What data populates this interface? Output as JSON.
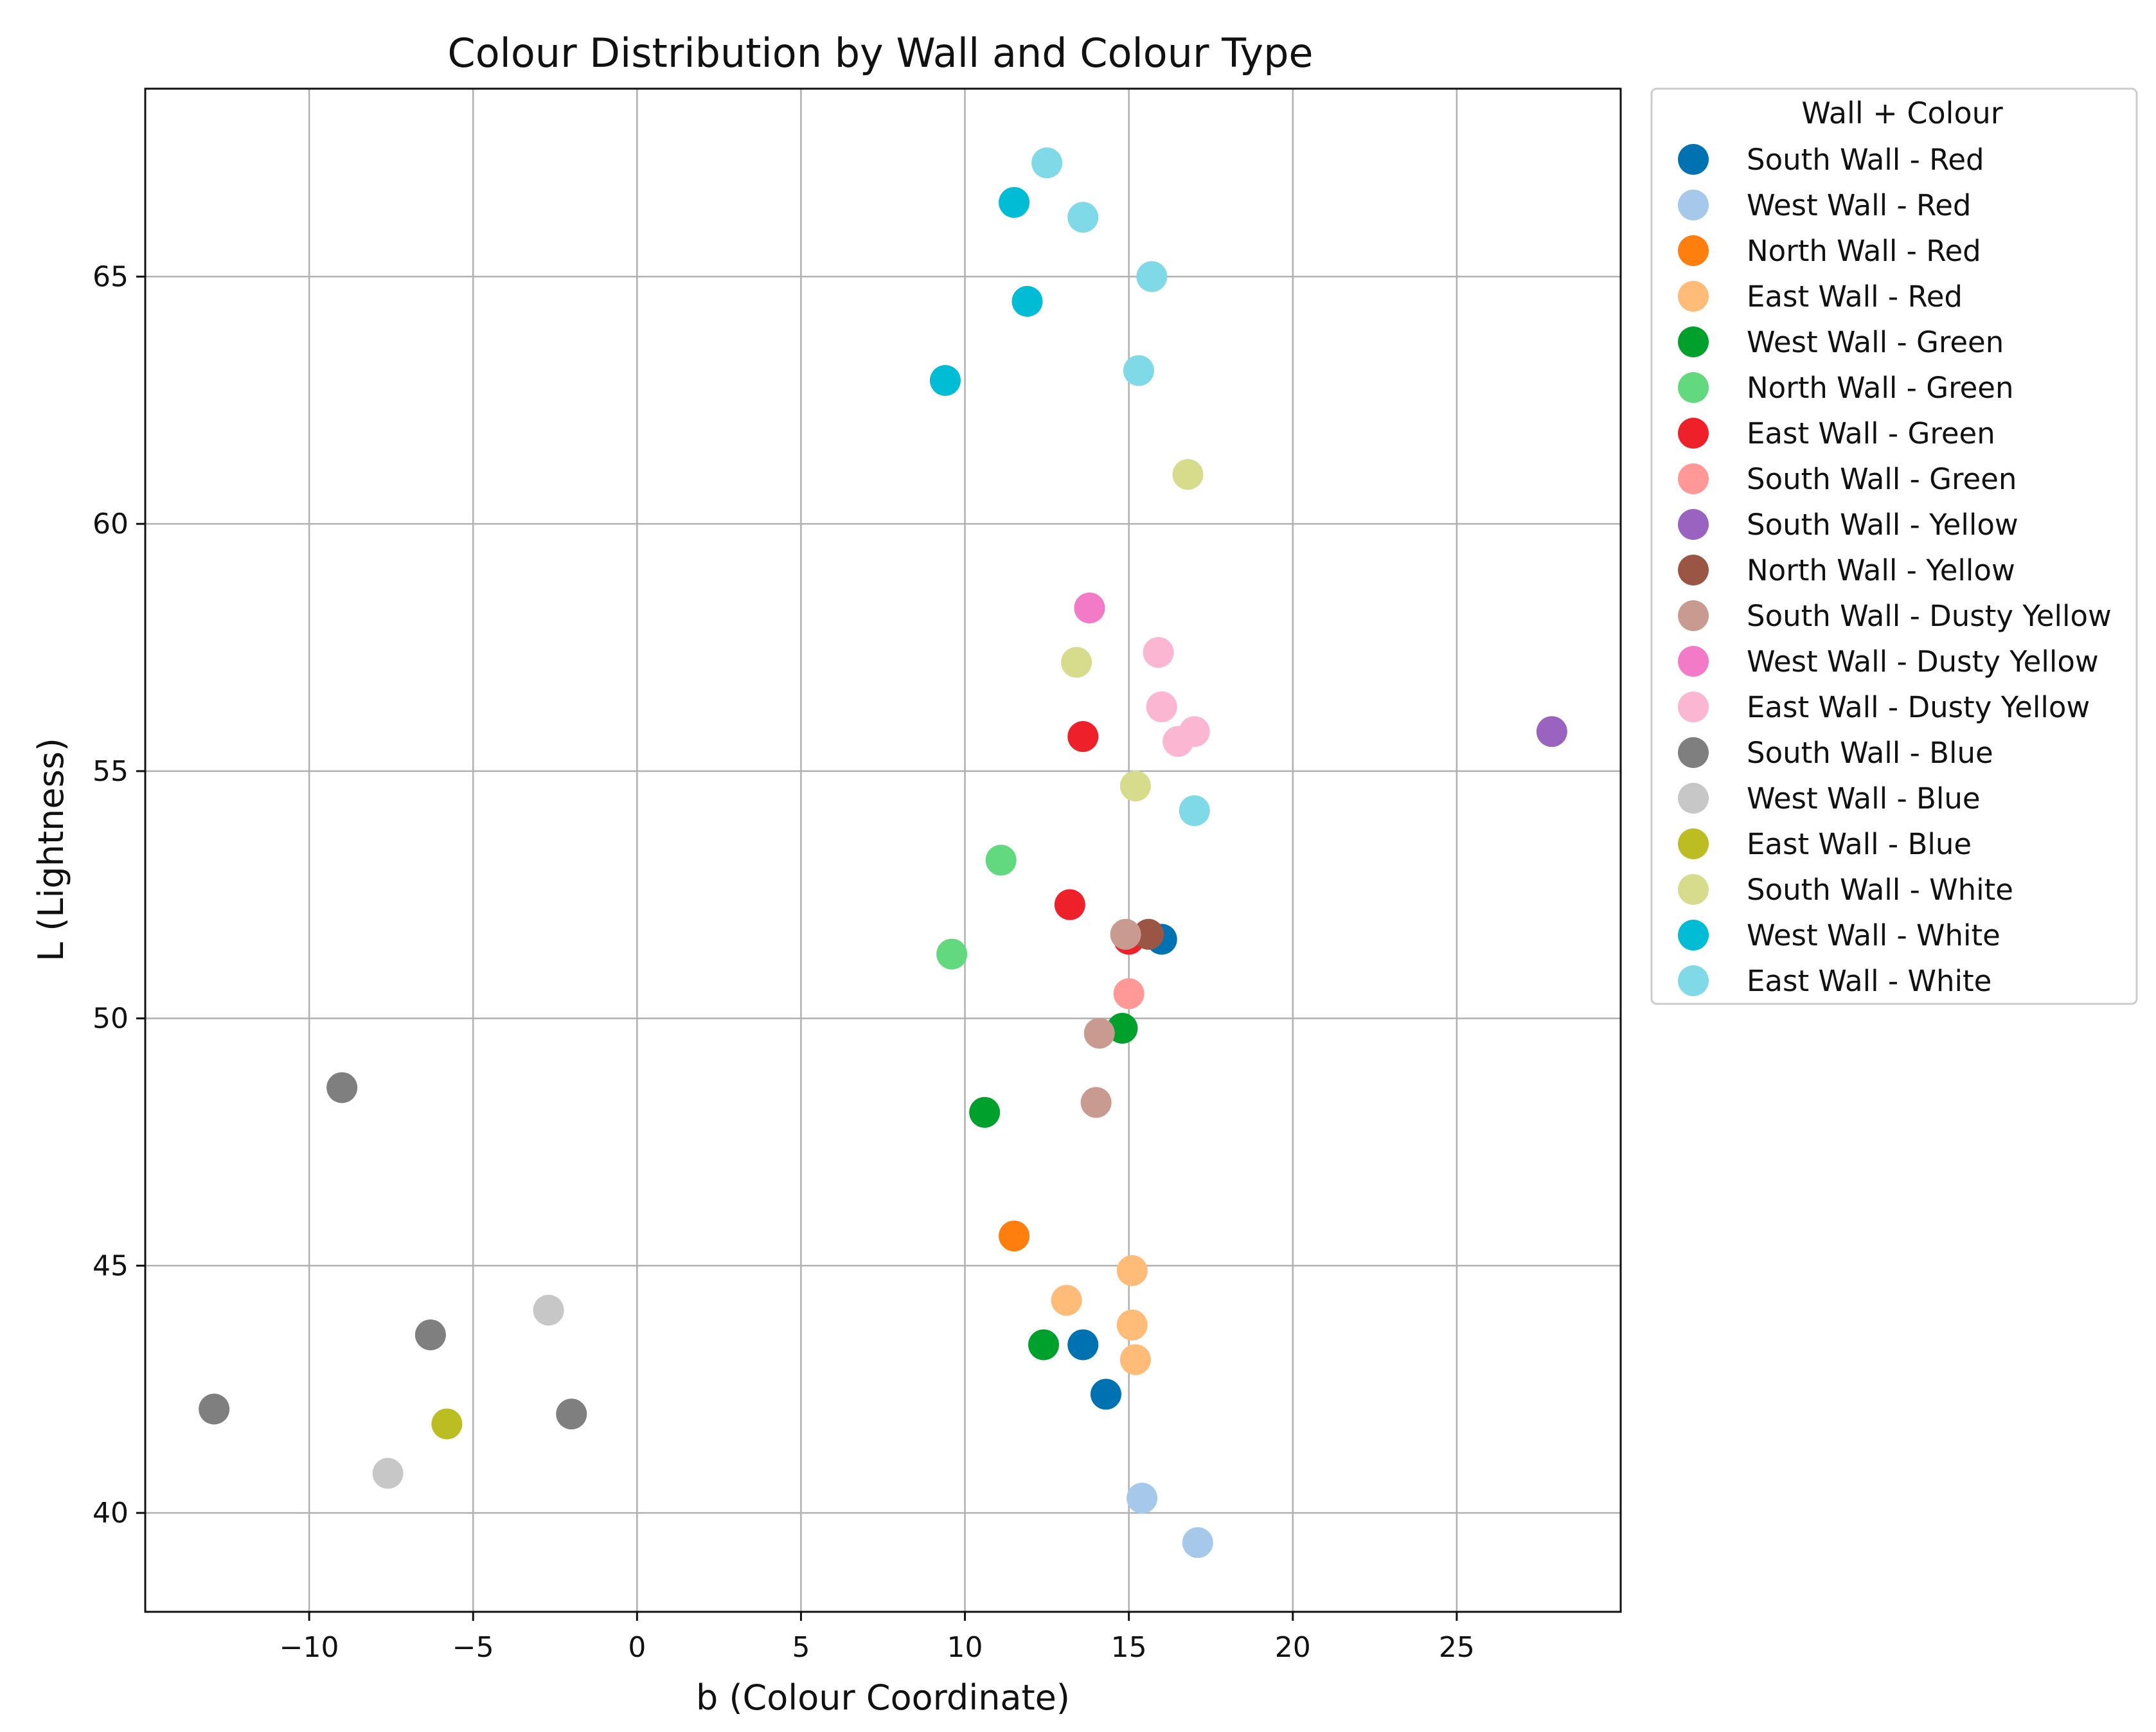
{
  "chart_data": {
    "type": "scatter",
    "title": "Colour Distribution by Wall and Colour Type",
    "xlabel": "b (Colour Coordinate)",
    "ylabel": "L (Lightness)",
    "xlim": [
      -15,
      30
    ],
    "ylim": [
      38,
      68.8
    ],
    "xticks": [
      -10,
      -5,
      0,
      5,
      10,
      15,
      20,
      25
    ],
    "yticks": [
      40,
      45,
      50,
      55,
      60,
      65
    ],
    "grid": true,
    "legend_title": "Wall + Colour",
    "legend_position": "outside-right",
    "series": [
      {
        "name": "South Wall - Red",
        "color": "#0072b2",
        "points": [
          [
            16.0,
            51.6
          ],
          [
            13.6,
            43.4
          ],
          [
            14.3,
            42.4
          ]
        ]
      },
      {
        "name": "West Wall - Red",
        "color": "#a6c8ea",
        "points": [
          [
            15.4,
            40.3
          ],
          [
            17.1,
            39.4
          ]
        ]
      },
      {
        "name": "North Wall - Red",
        "color": "#ff7f0e",
        "points": [
          [
            11.5,
            45.6
          ]
        ]
      },
      {
        "name": "East Wall - Red",
        "color": "#ffbb78",
        "points": [
          [
            15.1,
            44.9
          ],
          [
            13.1,
            44.3
          ],
          [
            15.1,
            43.8
          ],
          [
            15.2,
            43.1
          ]
        ]
      },
      {
        "name": "West Wall - Green",
        "color": "#00a02c",
        "points": [
          [
            14.8,
            49.8
          ],
          [
            10.6,
            48.1
          ],
          [
            12.4,
            43.4
          ]
        ]
      },
      {
        "name": "North Wall - Green",
        "color": "#62d97e",
        "points": [
          [
            11.1,
            53.2
          ],
          [
            9.6,
            51.3
          ]
        ]
      },
      {
        "name": "East Wall - Green",
        "color": "#ee2029",
        "points": [
          [
            13.6,
            55.7
          ],
          [
            13.2,
            52.3
          ],
          [
            15.0,
            51.6
          ]
        ]
      },
      {
        "name": "South Wall - Green",
        "color": "#ff9896",
        "points": [
          [
            15.0,
            50.5
          ]
        ]
      },
      {
        "name": "South Wall - Yellow",
        "color": "#9a63c0",
        "points": [
          [
            27.9,
            55.8
          ]
        ]
      },
      {
        "name": "North Wall - Yellow",
        "color": "#9a5545",
        "points": [
          [
            15.6,
            51.7
          ]
        ]
      },
      {
        "name": "South Wall - Dusty Yellow",
        "color": "#c99a90",
        "points": [
          [
            14.9,
            51.7
          ],
          [
            14.1,
            49.7
          ],
          [
            14.0,
            48.3
          ]
        ]
      },
      {
        "name": "West Wall - Dusty Yellow",
        "color": "#f37ac7",
        "points": [
          [
            13.8,
            58.3
          ]
        ]
      },
      {
        "name": "East Wall - Dusty Yellow",
        "color": "#fbb6d2",
        "points": [
          [
            15.9,
            57.4
          ],
          [
            16.0,
            56.3
          ],
          [
            17.0,
            55.8
          ],
          [
            16.5,
            55.6
          ]
        ]
      },
      {
        "name": "South Wall - Blue",
        "color": "#7f7f7f",
        "points": [
          [
            -9.0,
            48.6
          ],
          [
            -6.3,
            43.6
          ],
          [
            -12.9,
            42.1
          ],
          [
            -2.0,
            42.0
          ]
        ]
      },
      {
        "name": "West Wall - Blue",
        "color": "#c7c7c7",
        "points": [
          [
            -2.7,
            44.1
          ],
          [
            -7.6,
            40.8
          ]
        ]
      },
      {
        "name": "East Wall - Blue",
        "color": "#bcbd22",
        "points": [
          [
            -5.8,
            41.8
          ]
        ]
      },
      {
        "name": "South Wall - White",
        "color": "#d7dc8d",
        "points": [
          [
            16.8,
            61.0
          ],
          [
            13.4,
            57.2
          ],
          [
            15.2,
            54.7
          ]
        ]
      },
      {
        "name": "West Wall - White",
        "color": "#00bcd4",
        "points": [
          [
            11.5,
            66.5
          ],
          [
            11.9,
            64.5
          ],
          [
            9.4,
            62.9
          ]
        ]
      },
      {
        "name": "East Wall - White",
        "color": "#7fd9e6",
        "points": [
          [
            12.5,
            67.3
          ],
          [
            13.6,
            66.2
          ],
          [
            15.7,
            65.0
          ],
          [
            15.3,
            63.1
          ],
          [
            17.0,
            54.2
          ]
        ]
      }
    ]
  }
}
